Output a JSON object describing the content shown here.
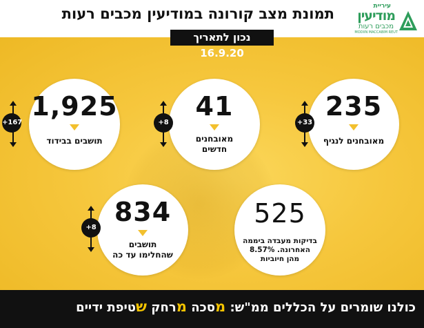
{
  "header": {
    "title": "תמונת מצב קורונה במודיעין מכבים רעות",
    "date": "נכון לתאריך 16.9.20",
    "logo": {
      "small": "עיריית",
      "main": "מודיעין",
      "sub": "מכבים רעות",
      "en": "MODIIN MACCABIM REUT"
    }
  },
  "stats": {
    "active_infected": {
      "value": "235",
      "label": "מאובחנים לנגיף",
      "delta": "+33"
    },
    "new_cases": {
      "value": "41",
      "label_line1": "מאובחנים",
      "label_line2": "חדשים",
      "delta": "+8"
    },
    "isolation": {
      "value": "1,925",
      "label": "תושבים בבידוד",
      "delta": "+167"
    },
    "tests": {
      "value": "525",
      "label_line1": "בדיקות מעבדה ביממה",
      "label_line2": "האחרונה. 8.57%",
      "label_line3": "מהן חיוביות"
    },
    "recovered": {
      "value": "834",
      "label_line1": "תושבים",
      "label_line2": "שהחלימו עד כה",
      "delta": "+8"
    }
  },
  "footer": {
    "intro": "כולנו שומרים על הכללים ממ\"ש:",
    "mask_letter": "מ",
    "mask_rest": "סכה",
    "distance_letter": "מ",
    "distance_rest": "רחק",
    "hygiene_letter": "ש",
    "hygiene_rest": "טיפת ידיים"
  },
  "colors": {
    "background_yellow": "#f6c73d",
    "accent_yellow": "#f4c400",
    "brand_green": "#2e9d5b",
    "dark": "#111111"
  }
}
